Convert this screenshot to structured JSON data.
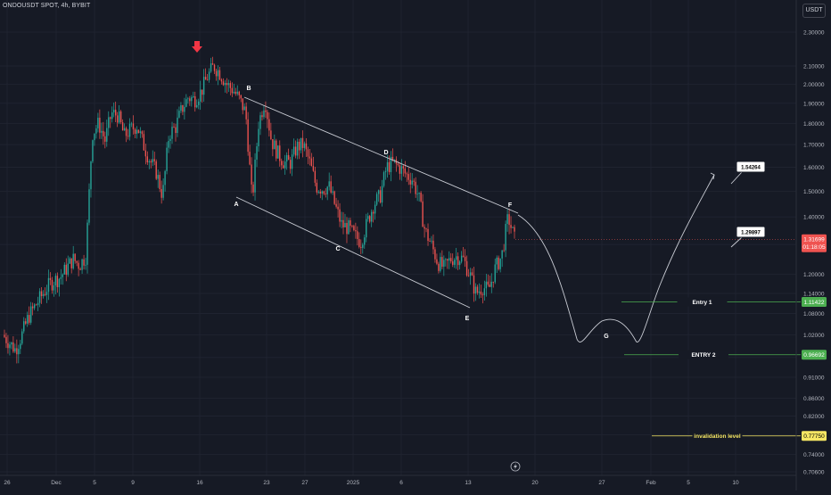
{
  "header": {
    "symbol_line": "ONDOUSDT SPOT, 4h, BYBIT",
    "currency": "USDT"
  },
  "colors": {
    "bg": "#161a25",
    "up": "#26a69a",
    "down": "#ef5350",
    "text": "#b2b5be",
    "line": "#c9ccd4",
    "entry": "#4caf50",
    "invalid": "#f5e663"
  },
  "chart_data": {
    "type": "candlestick",
    "y_scale": "log",
    "ylim": [
      0.7,
      2.45
    ],
    "y_ticks": [
      "2.30000",
      "2.10000",
      "2.00000",
      "1.90000",
      "1.80000",
      "1.70000",
      "1.60000",
      "1.50000",
      "1.40000",
      "1.30000",
      "1.20000",
      "1.14000",
      "1.08000",
      "1.02000",
      "0.96000",
      "0.91000",
      "0.86000",
      "0.82000",
      "0.78000",
      "0.74000",
      "0.70600"
    ],
    "x_ticks": [
      "26",
      "Dec",
      "5",
      "9",
      "16",
      "23",
      "27",
      "2025",
      "6",
      "13",
      "20",
      "27",
      "Feb",
      "5",
      "10"
    ],
    "price_path": [
      [
        0,
        1.02
      ],
      [
        1,
        1.0
      ],
      [
        2,
        0.98
      ],
      [
        3,
        1.02
      ],
      [
        4,
        1.07
      ],
      [
        5,
        1.1
      ],
      [
        6,
        1.13
      ],
      [
        7,
        1.16
      ],
      [
        8,
        1.18
      ],
      [
        9,
        1.19
      ],
      [
        10,
        1.22
      ],
      [
        11,
        1.25
      ],
      [
        12,
        1.23
      ],
      [
        13,
        1.26
      ],
      [
        14,
        1.75
      ],
      [
        15,
        1.8
      ],
      [
        16,
        1.72
      ],
      [
        17,
        1.85
      ],
      [
        18,
        1.84
      ],
      [
        19,
        1.74
      ],
      [
        20,
        1.77
      ],
      [
        21,
        1.79
      ],
      [
        22,
        1.7
      ],
      [
        23,
        1.63
      ],
      [
        24,
        1.58
      ],
      [
        25,
        1.48
      ],
      [
        26,
        1.75
      ],
      [
        27,
        1.78
      ],
      [
        28,
        1.87
      ],
      [
        29,
        1.93
      ],
      [
        30,
        1.92
      ],
      [
        31,
        1.96
      ],
      [
        32,
        2.04
      ],
      [
        33,
        2.1
      ],
      [
        34,
        2.06
      ],
      [
        35,
        2.0
      ],
      [
        36,
        1.97
      ],
      [
        37,
        1.92
      ],
      [
        38,
        1.85
      ],
      [
        39,
        1.46
      ],
      [
        40,
        1.8
      ],
      [
        41,
        1.92
      ],
      [
        42,
        1.72
      ],
      [
        43,
        1.66
      ],
      [
        44,
        1.62
      ],
      [
        45,
        1.62
      ],
      [
        46,
        1.69
      ],
      [
        47,
        1.7
      ],
      [
        48,
        1.62
      ],
      [
        49,
        1.52
      ],
      [
        50,
        1.51
      ],
      [
        51,
        1.52
      ],
      [
        52,
        1.44
      ],
      [
        53,
        1.37
      ],
      [
        54,
        1.36
      ],
      [
        55,
        1.33
      ],
      [
        56,
        1.31
      ],
      [
        57,
        1.38
      ],
      [
        58,
        1.45
      ],
      [
        59,
        1.48
      ],
      [
        60,
        1.6
      ],
      [
        61,
        1.62
      ],
      [
        62,
        1.6
      ],
      [
        63,
        1.57
      ],
      [
        64,
        1.55
      ],
      [
        65,
        1.48
      ],
      [
        66,
        1.35
      ],
      [
        67,
        1.3
      ],
      [
        68,
        1.24
      ],
      [
        69,
        1.22
      ],
      [
        70,
        1.25
      ],
      [
        71,
        1.26
      ],
      [
        72,
        1.25
      ],
      [
        73,
        1.2
      ],
      [
        74,
        1.14
      ],
      [
        75,
        1.16
      ],
      [
        76,
        1.15
      ],
      [
        77,
        1.22
      ],
      [
        78,
        1.26
      ],
      [
        79,
        1.4
      ],
      [
        80,
        1.32
      ]
    ],
    "wave_labels": [
      {
        "label": "A",
        "price": 1.4,
        "t": 39
      },
      {
        "label": "B",
        "price": 1.98,
        "t": 41
      },
      {
        "label": "C",
        "price": 1.27,
        "t": 56
      },
      {
        "label": "D",
        "price": 1.67,
        "t": 61
      },
      {
        "label": "E",
        "price": 1.06,
        "t": 75
      },
      {
        "label": "F",
        "price": 1.42,
        "t": 80
      },
      {
        "label": "G",
        "price": 1.0,
        "t": 95
      }
    ],
    "targets": [
      {
        "label": "1.54264",
        "price": 1.54264
      },
      {
        "label": "1.29897",
        "price": 1.29897
      }
    ],
    "levels": [
      {
        "name": "Entry 1",
        "price": 1.11422,
        "price_label": "1.11422"
      },
      {
        "name": "ENTRY 2",
        "price": 0.96692,
        "price_label": "0.96692"
      },
      {
        "name": "invalidation level",
        "price": 0.7775,
        "price_label": "0.77750"
      }
    ],
    "current_price": {
      "price": 1.31699,
      "label": "1.31699",
      "countdown": "01:18:05"
    }
  }
}
